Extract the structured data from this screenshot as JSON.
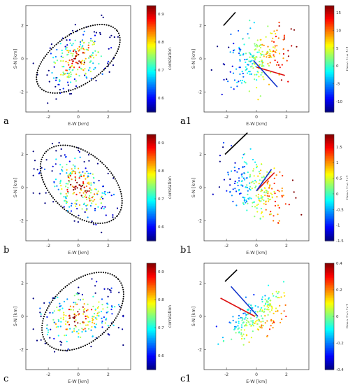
{
  "chart_data": [
    {
      "type": "scatter",
      "panel_label": "a",
      "xlabel": "E-W  [km]",
      "ylabel": "S-N  [km]",
      "x_ticks": [
        "-2",
        "0",
        "2"
      ],
      "y_ticks": [
        "2",
        "0",
        "-2"
      ],
      "xlim": [
        -3.5,
        3.5
      ],
      "ylim": [
        -3.2,
        3.2
      ],
      "colorbar": {
        "label": "correlation",
        "range": [
          0.55,
          0.93
        ],
        "ticks": [
          "0.9",
          "0.8",
          "0.7",
          "0.6"
        ]
      },
      "ellipse": {
        "center": [
          0,
          0
        ],
        "semi_major": 3.2,
        "semi_minor": 1.5,
        "angle_deg": 35
      },
      "scatter": {
        "n_points": 230,
        "spread": [
          1.15,
          0.75
        ],
        "rotation_deg": 30,
        "value_mode": "center_high",
        "seed": 11
      }
    },
    {
      "type": "scatter",
      "panel_label": "a1",
      "xlabel": "E-W  [km]",
      "ylabel": "S-N  [km]",
      "x_ticks": [
        "-2",
        "0",
        "2"
      ],
      "y_ticks": [
        "2",
        "0",
        "-2"
      ],
      "xlim": [
        -3.5,
        3.5
      ],
      "ylim": [
        -3.2,
        3.2
      ],
      "colorbar": {
        "label": "time lag [s]",
        "range": [
          -13,
          17
        ],
        "ticks": [
          "15",
          "10",
          "5",
          "0",
          "-5",
          "-10"
        ]
      },
      "arrows": [
        {
          "color": "#000000",
          "from": [
            -2.2,
            2.0
          ],
          "to": [
            -1.4,
            2.8
          ]
        },
        {
          "color": "#dd1111",
          "from": [
            0,
            -0.5
          ],
          "to": [
            1.9,
            -1.0
          ]
        },
        {
          "color": "#1133cc",
          "from": [
            -0.2,
            -0.1
          ],
          "to": [
            1.4,
            -1.7
          ]
        }
      ],
      "scatter": {
        "n_points": 230,
        "spread": [
          1.2,
          0.75
        ],
        "rotation_deg": 30,
        "value_mode": "gradient_x",
        "seed": 17
      }
    },
    {
      "type": "scatter",
      "panel_label": "b",
      "xlabel": "E-W  [km]",
      "ylabel": "S-N  [km]",
      "x_ticks": [
        "-2",
        "0",
        "2"
      ],
      "y_ticks": [
        "2",
        "0",
        "-2"
      ],
      "xlim": [
        -3.5,
        3.5
      ],
      "ylim": [
        -3.2,
        3.2
      ],
      "colorbar": {
        "label": "correlation",
        "range": [
          0.55,
          0.93
        ],
        "ticks": [
          "0.9",
          "0.8",
          "0.7",
          "0.6"
        ]
      },
      "ellipse": {
        "center": [
          0.2,
          0.2
        ],
        "semi_major": 3.2,
        "semi_minor": 1.8,
        "angle_deg": -42
      },
      "scatter": {
        "n_points": 250,
        "spread": [
          1.2,
          0.8
        ],
        "rotation_deg": -35,
        "value_mode": "center_high",
        "seed": 23
      }
    },
    {
      "type": "scatter",
      "panel_label": "b1",
      "xlabel": "E-W  [km]",
      "ylabel": "S-N  [km]",
      "x_ticks": [
        "-2",
        "0",
        "2"
      ],
      "y_ticks": [
        "2",
        "0",
        "-2"
      ],
      "xlim": [
        -3.5,
        3.5
      ],
      "ylim": [
        -3.2,
        3.2
      ],
      "colorbar": {
        "label": "time lag [s]",
        "range": [
          -1.5,
          1.9
        ],
        "ticks": [
          "1.5",
          "1",
          "0.5",
          "0",
          "-0.5",
          "-1",
          "-1.5"
        ]
      },
      "arrows": [
        {
          "color": "#000000",
          "from": [
            -2.1,
            2.0
          ],
          "to": [
            -0.6,
            3.3
          ]
        },
        {
          "color": "#dd1111",
          "from": [
            0,
            -0.2
          ],
          "to": [
            1.2,
            0.9
          ]
        },
        {
          "color": "#1133cc",
          "from": [
            0,
            -0.2
          ],
          "to": [
            1.0,
            1.1
          ]
        }
      ],
      "scatter": {
        "n_points": 230,
        "spread": [
          1.2,
          0.8
        ],
        "rotation_deg": -40,
        "value_mode": "gradient_x",
        "seed": 31
      }
    },
    {
      "type": "scatter",
      "panel_label": "c",
      "xlabel": "E-W  [km]",
      "ylabel": "S-N  [km]",
      "x_ticks": [
        "-2",
        "0",
        "2"
      ],
      "y_ticks": [
        "2",
        "0",
        "-2"
      ],
      "xlim": [
        -3.5,
        3.5
      ],
      "ylim": [
        -3.2,
        3.2
      ],
      "colorbar": {
        "label": "correlation",
        "range": [
          0.55,
          0.93
        ],
        "ticks": [
          "0.9",
          "0.8",
          "0.7",
          "0.6"
        ]
      },
      "ellipse": {
        "center": [
          0.3,
          0.3
        ],
        "semi_major": 3.2,
        "semi_minor": 1.8,
        "angle_deg": 42
      },
      "scatter": {
        "n_points": 230,
        "spread": [
          1.4,
          0.8
        ],
        "rotation_deg": 10,
        "value_mode": "center_high",
        "seed": 41
      }
    },
    {
      "type": "scatter",
      "panel_label": "c1",
      "xlabel": "E-W  [km]",
      "ylabel": "S-N  [km]",
      "x_ticks": [
        "-2",
        "0",
        "2"
      ],
      "y_ticks": [
        "2",
        "0",
        "-2"
      ],
      "xlim": [
        -3.5,
        3.5
      ],
      "ylim": [
        -3.2,
        3.2
      ],
      "colorbar": {
        "label": "time lag [s]",
        "range": [
          -0.4,
          0.4
        ],
        "ticks": [
          "0.4",
          "0.2",
          "0",
          "-0.2",
          "-0.4"
        ]
      },
      "arrows": [
        {
          "color": "#000000",
          "from": [
            -2.1,
            2.1
          ],
          "to": [
            -1.3,
            2.8
          ]
        },
        {
          "color": "#dd1111",
          "from": [
            -2.4,
            1.1
          ],
          "to": [
            -0.1,
            0.0
          ]
        },
        {
          "color": "#1133cc",
          "from": [
            -1.7,
            1.8
          ],
          "to": [
            0.1,
            0.0
          ]
        }
      ],
      "scatter": {
        "n_points": 200,
        "spread": [
          1.2,
          0.55
        ],
        "rotation_deg": 35,
        "value_mode": "gradient_diag",
        "seed": 53
      }
    }
  ]
}
